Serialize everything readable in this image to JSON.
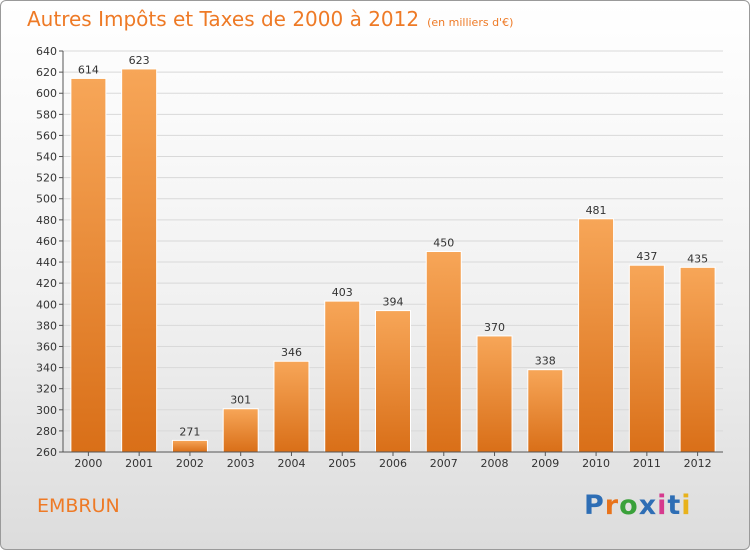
{
  "header": {
    "title": "Autres Impôts et Taxes de 2000 à 2012",
    "unit": "(en milliers d'€)"
  },
  "footer": {
    "commune": "EMBRUN"
  },
  "logo": {
    "text": "Proxiti",
    "colors": [
      "#2e6eb5",
      "#e8731b",
      "#3aa13a",
      "#2e6eb5",
      "#d63a8e",
      "#2e6eb5",
      "#e8b21b"
    ]
  },
  "colors": {
    "bar_light": "#f7a658",
    "bar_dark": "#d96f18",
    "text": "#ee7a26",
    "grid": "#d9d9d9"
  },
  "chart_data": {
    "type": "bar",
    "title": "Autres Impôts et Taxes de 2000 à 2012",
    "subtitle": "(en milliers d'€)",
    "categories": [
      "2000",
      "2001",
      "2002",
      "2003",
      "2004",
      "2005",
      "2006",
      "2007",
      "2008",
      "2009",
      "2010",
      "2011",
      "2012"
    ],
    "values": [
      614,
      623,
      271,
      301,
      346,
      403,
      394,
      450,
      370,
      338,
      481,
      437,
      435
    ],
    "ylim": [
      260,
      640
    ],
    "yticks": [
      260,
      280,
      300,
      320,
      340,
      360,
      380,
      400,
      420,
      440,
      460,
      480,
      500,
      520,
      540,
      560,
      580,
      600,
      620,
      640
    ],
    "grid": true,
    "data_labels": true
  }
}
